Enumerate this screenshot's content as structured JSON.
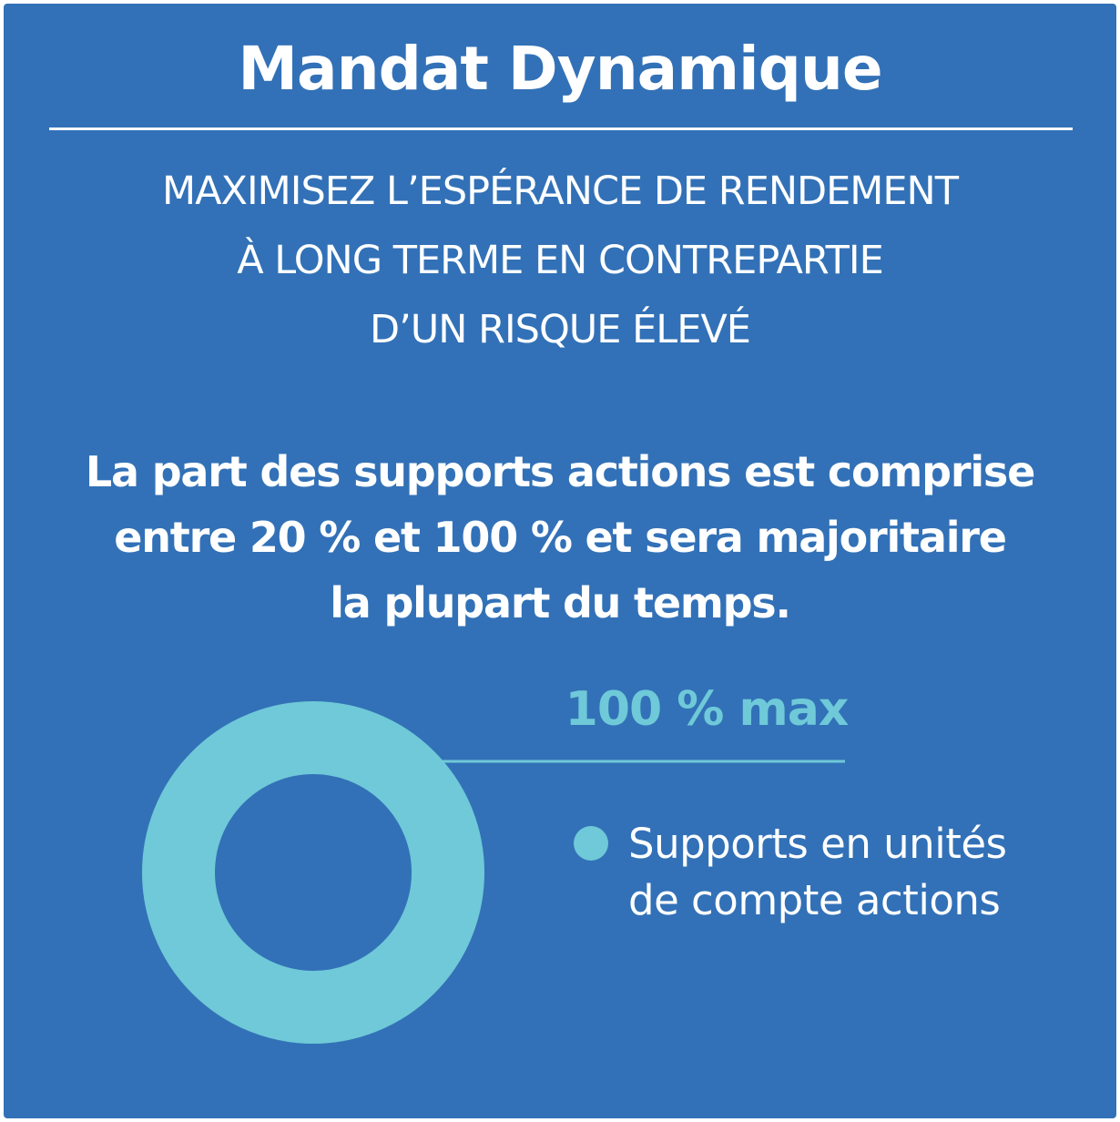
{
  "colors": {
    "background": "#3271b7",
    "accent": "#6fc9d8",
    "text": "#ffffff"
  },
  "header": {
    "title": "Mandat Dynamique"
  },
  "subtitle": {
    "lines": [
      "MAXIMISEZ L’ESPÉRANCE DE RENDEMENT",
      "À LONG TERME EN CONTREPARTIE",
      "D’UN RISQUE ÉLEVÉ"
    ]
  },
  "description": {
    "lines": [
      "La part des supports actions est comprise",
      "entre 20 % et 100 % et sera majoritaire",
      "la plupart du temps."
    ]
  },
  "chart_data": {
    "type": "pie",
    "donut": true,
    "slices": [
      {
        "label_lines": [
          "Supports en unités",
          "de compte actions"
        ],
        "value": 100,
        "callout": "100 % max"
      }
    ],
    "legend_position": "right"
  }
}
